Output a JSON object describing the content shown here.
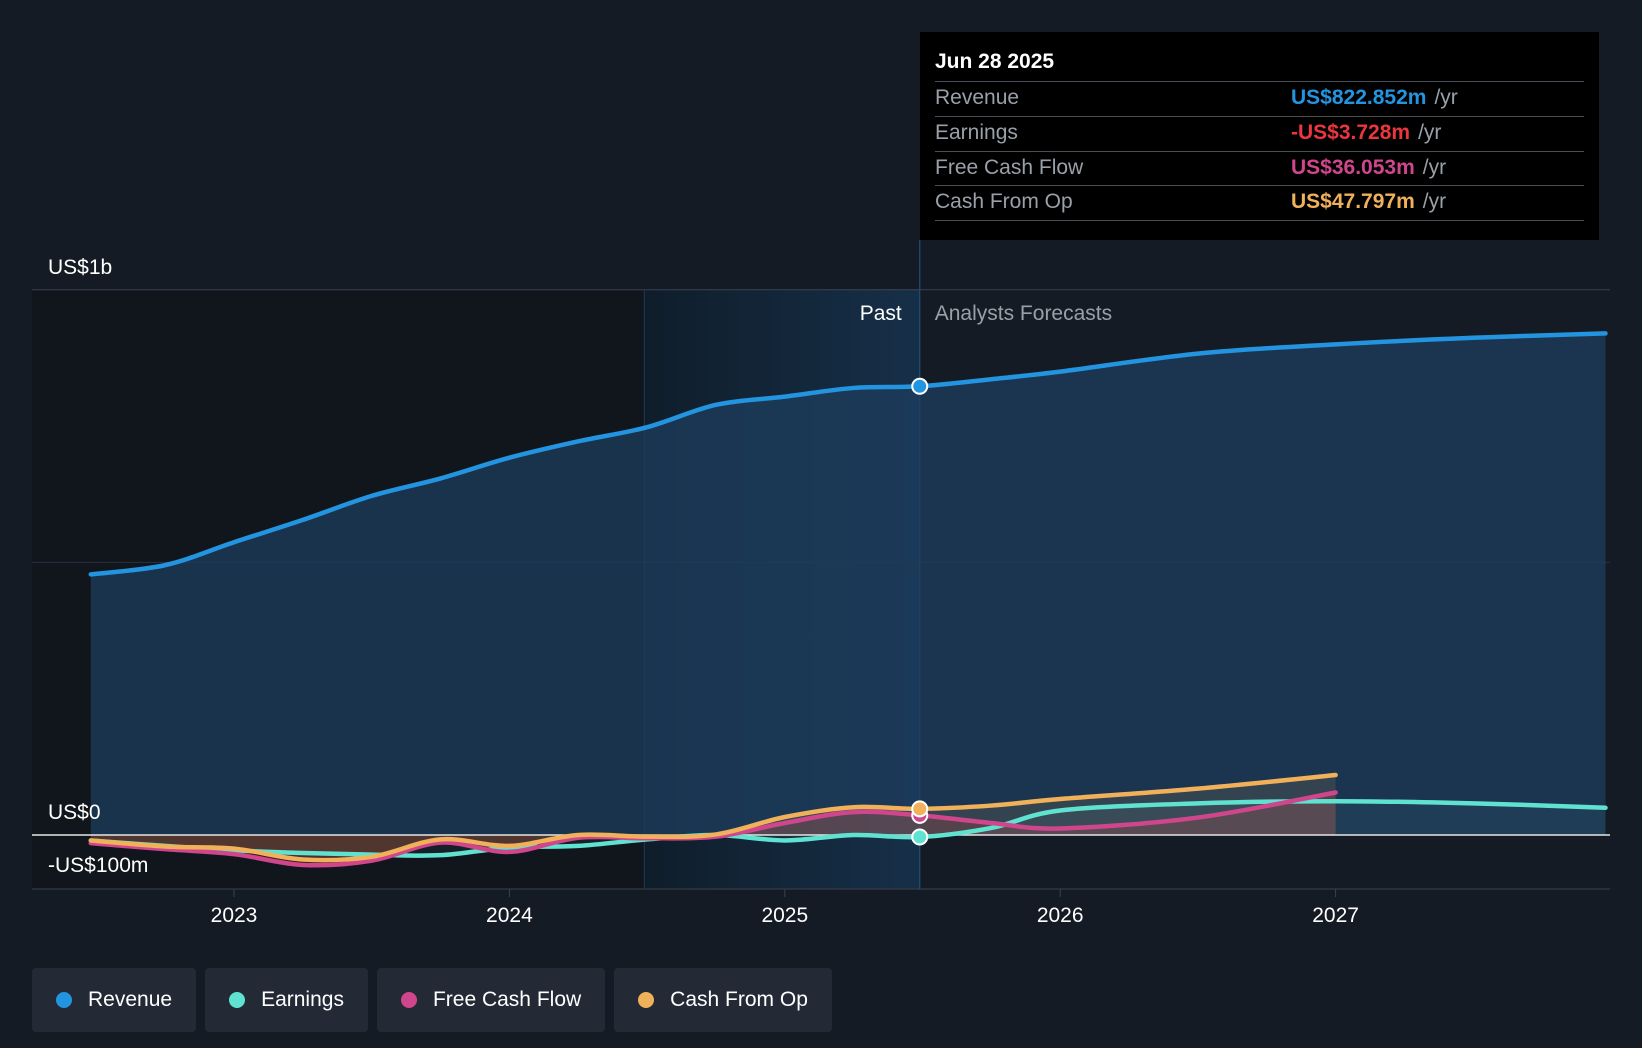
{
  "tooltip": {
    "date": "Jun 28 2025",
    "rows": [
      {
        "label": "Revenue",
        "value": "US$822.852m",
        "unit": "/yr",
        "color": "#2394df"
      },
      {
        "label": "Earnings",
        "value": "-US$3.728m",
        "unit": "/yr",
        "color": "#e9363f"
      },
      {
        "label": "Free Cash Flow",
        "value": "US$36.053m",
        "unit": "/yr",
        "color": "#d0468d"
      },
      {
        "label": "Cash From Op",
        "value": "US$47.797m",
        "unit": "/yr",
        "color": "#f0b15a"
      }
    ]
  },
  "legend": [
    {
      "label": "Revenue",
      "color": "#2394df"
    },
    {
      "label": "Earnings",
      "color": "#5fe3d0"
    },
    {
      "label": "Free Cash Flow",
      "color": "#d0468d"
    },
    {
      "label": "Cash From Op",
      "color": "#f0b15a"
    }
  ],
  "chart_data": {
    "type": "line",
    "y_tick_labels": [
      "US$1b",
      "US$0",
      "-US$100m"
    ],
    "x_tick_labels": [
      "2023",
      "2024",
      "2025",
      "2026",
      "2027"
    ],
    "ylim": [
      -100,
      1000
    ],
    "xlim": [
      2022.48,
      2027.98
    ],
    "past_label": "Past",
    "forecast_label": "Analysts Forecasts",
    "split_x": 2025.49,
    "highlight_start_x": 2024.49,
    "series": [
      {
        "name": "Revenue",
        "color": "#2394df",
        "x": [
          2022.48,
          2022.75,
          2023.0,
          2023.25,
          2023.5,
          2023.75,
          2024.0,
          2024.25,
          2024.5,
          2024.75,
          2025.0,
          2025.25,
          2025.49,
          2025.75,
          2026.0,
          2026.5,
          2027.0,
          2027.5,
          2027.98
        ],
        "y": [
          478,
          495,
          537,
          578,
          622,
          654,
          692,
          722,
          748,
          789,
          804,
          820,
          823,
          836,
          850,
          883,
          900,
          912,
          920
        ]
      },
      {
        "name": "Earnings",
        "color": "#5fe3d0",
        "x": [
          2022.48,
          2022.75,
          2023.0,
          2023.25,
          2023.5,
          2023.75,
          2024.0,
          2024.25,
          2024.5,
          2024.75,
          2025.0,
          2025.25,
          2025.49,
          2025.75,
          2026.0,
          2026.5,
          2027.0,
          2027.5,
          2027.98
        ],
        "y": [
          -10,
          -20,
          -28,
          -33,
          -36,
          -37,
          -23,
          -20,
          -8,
          0,
          -10,
          0,
          -3.7,
          13,
          45,
          58,
          62,
          58,
          50
        ]
      },
      {
        "name": "Free Cash Flow",
        "color": "#d0468d",
        "x": [
          2022.48,
          2022.75,
          2023.0,
          2023.25,
          2023.5,
          2023.75,
          2024.0,
          2024.25,
          2024.5,
          2024.75,
          2025.0,
          2025.25,
          2025.49,
          2025.75,
          2026.0,
          2026.5,
          2027.0
        ],
        "y": [
          -15,
          -26,
          -35,
          -55,
          -47,
          -14,
          -31,
          -5,
          -6,
          -3,
          22,
          42,
          36,
          22,
          12,
          32,
          78
        ]
      },
      {
        "name": "Cash From Op",
        "color": "#f0b15a",
        "x": [
          2022.48,
          2022.75,
          2023.0,
          2023.25,
          2023.5,
          2023.75,
          2024.0,
          2024.25,
          2024.5,
          2024.75,
          2025.0,
          2025.25,
          2025.49,
          2025.75,
          2026.0,
          2026.5,
          2027.0
        ],
        "y": [
          -10,
          -21,
          -25,
          -45,
          -40,
          -8,
          -20,
          0,
          -3,
          1,
          33,
          51,
          48,
          54,
          66,
          85,
          110
        ]
      }
    ]
  }
}
